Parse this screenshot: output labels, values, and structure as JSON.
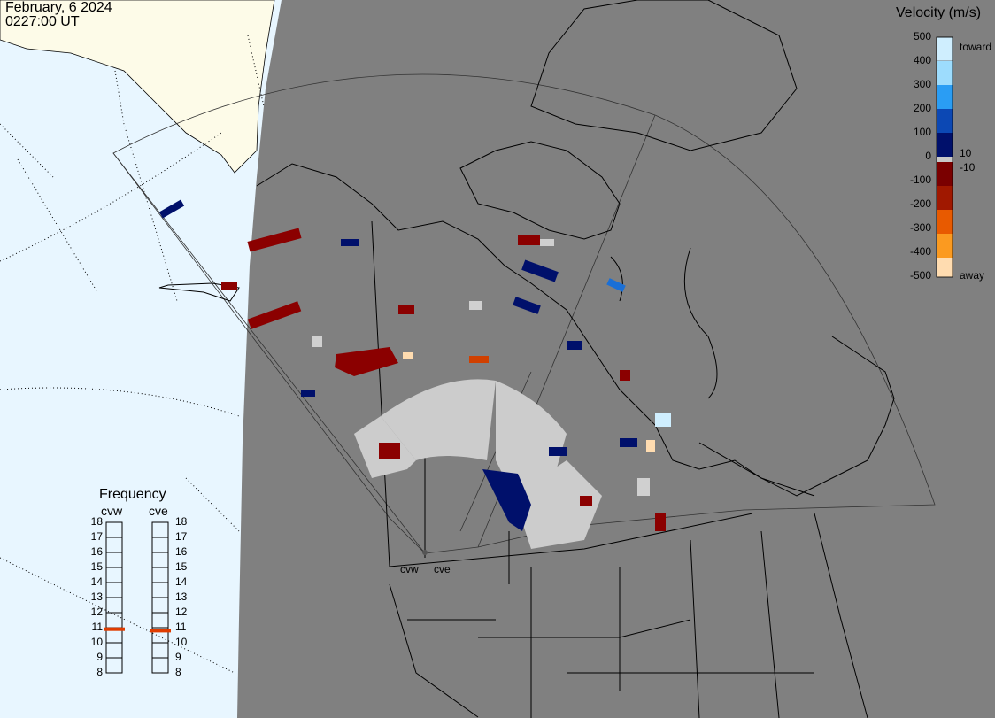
{
  "header": {
    "date": "February, 6 2024",
    "time": "0227:00 UT"
  },
  "velocity_legend": {
    "title": "Velocity (m/s)",
    "ticks": [
      "500",
      "400",
      "300",
      "200",
      "100",
      "0",
      "-100",
      "-200",
      "-300",
      "-400",
      "-500"
    ],
    "label_pos_threshold": "10",
    "label_neg_threshold": "-10",
    "label_toward": "toward",
    "label_away": "away",
    "colors": {
      "toward_scale": [
        "#cfeefe",
        "#9ddcfd",
        "#63c3fb",
        "#2a9df4",
        "#1a6fd6",
        "#0c48b4",
        "#082e93",
        "#041f7a",
        "#00106b"
      ],
      "neutral": "#c8c8c8",
      "away_scale": [
        "#7a0000",
        "#8f0a00",
        "#a01800",
        "#b82800",
        "#d04000",
        "#e85a00",
        "#f57a00",
        "#fb9a20",
        "#fdbe6a",
        "#ffdcb0"
      ]
    }
  },
  "frequency_panel": {
    "title": "Frequency",
    "radars": [
      {
        "name": "cvw",
        "value_mhz": 10.9
      },
      {
        "name": "cve",
        "value_mhz": 10.8
      }
    ],
    "scale": [
      "18",
      "17",
      "16",
      "15",
      "14",
      "13",
      "12",
      "11",
      "10",
      "9",
      "8"
    ],
    "marker_color": "#e03c00"
  },
  "map": {
    "colors": {
      "ocean": "#e8f6ff",
      "land_lit": "#fdfbe8",
      "night": "#808080",
      "coast": "#000000",
      "fov": "#444444"
    },
    "site_labels": {
      "west": "cvw",
      "east": "cve"
    }
  }
}
